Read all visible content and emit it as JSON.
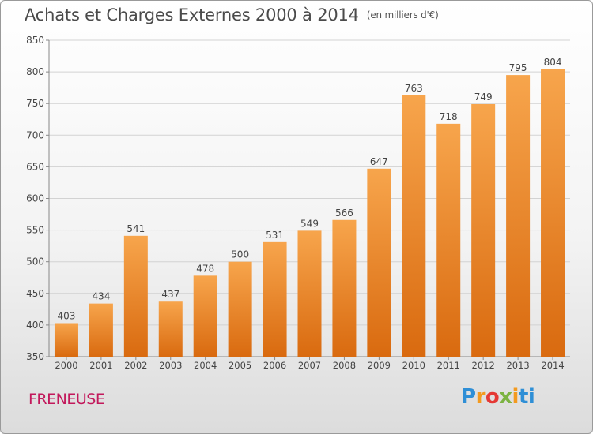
{
  "header": {
    "title": "Achats et Charges Externes 2000 à 2014",
    "unit": "(en milliers d'€)"
  },
  "footer": {
    "commune": "FRENEUSE",
    "brand_letters": [
      "P",
      "r",
      "o",
      "x",
      "i",
      "ti"
    ]
  },
  "colors": {
    "bar_top": "#f7a54c",
    "bar_bottom": "#d96a0f",
    "commune": "#c2185b"
  },
  "chart_data": {
    "type": "bar",
    "title": "Achats et Charges Externes 2000 à 2014",
    "subtitle": "(en milliers d'€)",
    "categories": [
      "2000",
      "2001",
      "2002",
      "2003",
      "2004",
      "2005",
      "2006",
      "2007",
      "2008",
      "2009",
      "2010",
      "2011",
      "2012",
      "2013",
      "2014"
    ],
    "values": [
      403,
      434,
      541,
      437,
      478,
      500,
      531,
      549,
      566,
      647,
      763,
      718,
      749,
      795,
      804
    ],
    "ylim": [
      350,
      850
    ],
    "yticks": [
      350,
      400,
      450,
      500,
      550,
      600,
      650,
      700,
      750,
      800,
      850
    ],
    "grid": true,
    "data_labels": true
  }
}
